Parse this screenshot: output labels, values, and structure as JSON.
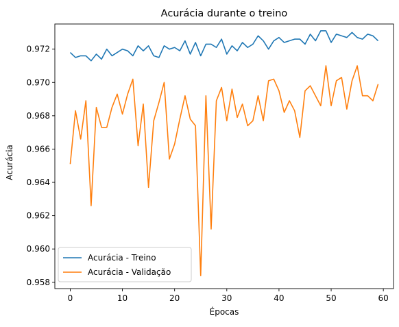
{
  "chart_data": {
    "type": "line",
    "title": "Acurácia durante o treino",
    "xlabel": "Épocas",
    "ylabel": "Acurácia",
    "xlim": [
      -2.95,
      61.95
    ],
    "ylim": [
      0.95762,
      0.97351
    ],
    "xticks": [
      0,
      10,
      20,
      30,
      40,
      50,
      60
    ],
    "yticks": [
      0.958,
      0.96,
      0.962,
      0.964,
      0.966,
      0.968,
      0.97,
      0.972
    ],
    "ytick_labels": [
      "0.958",
      "0.960",
      "0.962",
      "0.964",
      "0.966",
      "0.968",
      "0.970",
      "0.972"
    ],
    "grid": false,
    "legend_position": "lower-left",
    "x": [
      0,
      1,
      2,
      3,
      4,
      5,
      6,
      7,
      8,
      9,
      10,
      11,
      12,
      13,
      14,
      15,
      16,
      17,
      18,
      19,
      20,
      21,
      22,
      23,
      24,
      25,
      26,
      27,
      28,
      29,
      30,
      31,
      32,
      33,
      34,
      35,
      36,
      37,
      38,
      39,
      40,
      41,
      42,
      43,
      44,
      45,
      46,
      47,
      48,
      49,
      50,
      51,
      52,
      53,
      54,
      55,
      56,
      57,
      58,
      59
    ],
    "series": [
      {
        "name": "Acurácia - Treino",
        "color": "#1f77b4",
        "values": [
          0.9718,
          0.9715,
          0.9716,
          0.9716,
          0.9713,
          0.9717,
          0.9714,
          0.972,
          0.9716,
          0.9718,
          0.972,
          0.9719,
          0.9716,
          0.9722,
          0.9719,
          0.9722,
          0.9716,
          0.9715,
          0.9722,
          0.972,
          0.9721,
          0.9719,
          0.9725,
          0.9717,
          0.9724,
          0.9716,
          0.9723,
          0.9723,
          0.9721,
          0.9726,
          0.9717,
          0.9722,
          0.9719,
          0.9724,
          0.9721,
          0.9723,
          0.9728,
          0.9725,
          0.972,
          0.9725,
          0.9727,
          0.9724,
          0.9725,
          0.9726,
          0.9726,
          0.9723,
          0.9729,
          0.9725,
          0.9731,
          0.9731,
          0.9724,
          0.9729,
          0.9728,
          0.9727,
          0.973,
          0.9727,
          0.9726,
          0.9729,
          0.9728,
          0.9725
        ]
      },
      {
        "name": "Acurácia - Validação",
        "color": "#ff7f0e",
        "values": [
          0.9651,
          0.9683,
          0.9666,
          0.9689,
          0.9626,
          0.9685,
          0.9673,
          0.9673,
          0.9685,
          0.9693,
          0.9681,
          0.9693,
          0.9702,
          0.9662,
          0.9687,
          0.9637,
          0.9677,
          0.9688,
          0.97,
          0.9654,
          0.9663,
          0.9678,
          0.9692,
          0.9678,
          0.9674,
          0.9584,
          0.9692,
          0.9612,
          0.9689,
          0.9697,
          0.9677,
          0.9696,
          0.9679,
          0.9687,
          0.9674,
          0.9677,
          0.9692,
          0.9677,
          0.9701,
          0.9702,
          0.9695,
          0.9682,
          0.9689,
          0.9683,
          0.9667,
          0.9695,
          0.9698,
          0.9692,
          0.9686,
          0.971,
          0.9686,
          0.9701,
          0.9703,
          0.9684,
          0.9701,
          0.971,
          0.9692,
          0.9692,
          0.9689,
          0.9699
        ]
      }
    ]
  }
}
